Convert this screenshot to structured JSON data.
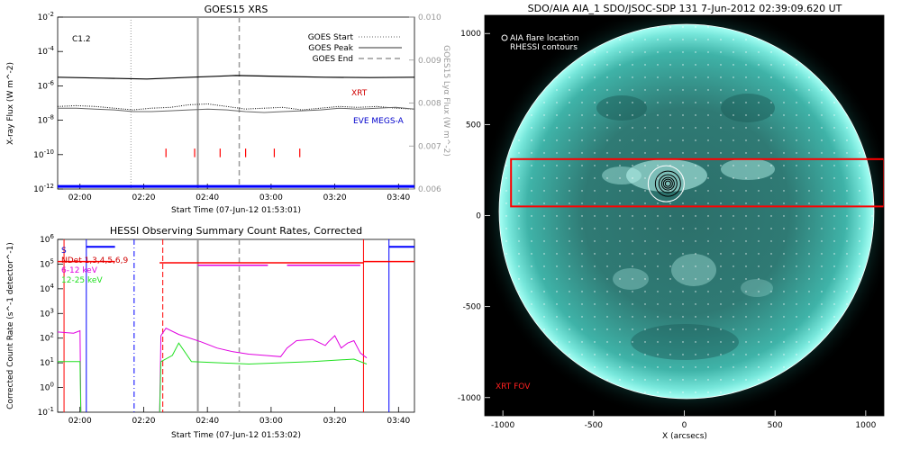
{
  "chart_data": [
    {
      "type": "line",
      "title": "GOES15 XRS",
      "xlabel": "Start Time (07-Jun-12 01:53:01)",
      "ylabel": "X-ray Flux (W m^-2)",
      "ylabel_right": "GOES15 Lyα Flux (W m^-2)",
      "x_range_minutes": [
        0,
        112
      ],
      "x_ticks": [
        "02:00",
        "02:20",
        "02:40",
        "03:00",
        "03:20",
        "03:40"
      ],
      "y_ticks": [
        "10^-2",
        "10^-4",
        "10^-6",
        "10^-8",
        "10^-10",
        "10^-12"
      ],
      "ylim_log10": [
        -12,
        -2
      ],
      "y2_ticks": [
        "0.010",
        "0.009",
        "0.008",
        "0.007",
        "0.006"
      ],
      "y2lim": [
        0.006,
        0.01
      ],
      "class_label": "C1.2",
      "legend": [
        {
          "label": "GOES Start",
          "style": "dotted"
        },
        {
          "label": "GOES Peak",
          "style": "solid"
        },
        {
          "label": "GOES End",
          "style": "dashed"
        }
      ],
      "series_labels": {
        "xrt": "XRT",
        "eve": "EVE MEGS-A"
      },
      "goes_start_min": 23,
      "goes_peak_min": 44,
      "goes_end_min": 57,
      "xrt_marks_min": [
        34,
        43,
        51,
        59,
        68,
        76
      ],
      "series": [
        {
          "name": "GOES long",
          "log10": [
            -5.5,
            -5.55,
            -5.6,
            -5.5,
            -5.4,
            -5.45,
            -5.5,
            -5.52,
            -5.5
          ]
        },
        {
          "name": "GOES short (dotted)",
          "log10": [
            -7.2,
            -7.15,
            -7.2,
            -7.3,
            -7.4,
            -7.3,
            -7.25,
            -7.1,
            -7.05,
            -7.2,
            -7.35,
            -7.3,
            -7.25,
            -7.4,
            -7.3,
            -7.2,
            -7.25,
            -7.2,
            -7.3,
            -7.35
          ]
        },
        {
          "name": "Lyman-alpha",
          "log10": [
            -7.3,
            -7.3,
            -7.35,
            -7.4,
            -7.5,
            -7.5,
            -7.45,
            -7.4,
            -7.35,
            -7.4,
            -7.5,
            -7.55,
            -7.5,
            -7.45,
            -7.4,
            -7.3,
            -7.35,
            -7.3,
            -7.25,
            -7.35
          ]
        },
        {
          "name": "baseline",
          "log10": [
            -11.85,
            -11.85
          ]
        }
      ]
    },
    {
      "type": "line",
      "title": "HESSI Observing Summary Count Rates, Corrected",
      "xlabel": "Start Time (07-Jun-12 01:53:02)",
      "ylabel": "Corrected Count Rate (s^-1 detector^-1)",
      "x_range_minutes": [
        0,
        112
      ],
      "x_ticks": [
        "02:00",
        "02:20",
        "02:40",
        "03:00",
        "03:20",
        "03:40"
      ],
      "y_ticks": [
        "10^6",
        "10^5",
        "10^4",
        "10^3",
        "10^2",
        "10^1",
        "10^0",
        "10^-1"
      ],
      "ylim_log10": [
        -1,
        6
      ],
      "legend": [
        {
          "label": "S",
          "color": "#0000d0"
        },
        {
          "label": "NDet 1,3,4,5,6,9",
          "color": "#d00000"
        },
        {
          "label": "6-12 keV",
          "color": "#e000e0"
        },
        {
          "label": "12-25 keV",
          "color": "#20e020"
        }
      ],
      "series": [
        {
          "name": "6-12 keV",
          "x": [
            0,
            5,
            7,
            7.3,
            32,
            32.4,
            34,
            38,
            45,
            50,
            55,
            60,
            65,
            70,
            72,
            75,
            80,
            84,
            85,
            87,
            89,
            91,
            93,
            95,
            97
          ],
          "log10": [
            2.25,
            2.2,
            2.3,
            -1.2,
            -1.2,
            2.1,
            2.4,
            2.15,
            1.85,
            1.6,
            1.45,
            1.35,
            1.3,
            1.25,
            1.6,
            1.9,
            1.95,
            1.7,
            1.85,
            2.1,
            1.6,
            1.8,
            1.9,
            1.4,
            1.2
          ]
        },
        {
          "name": "12-25 keV",
          "x": [
            0,
            7,
            7.3,
            32,
            32.4,
            36,
            38,
            42,
            60,
            80,
            93,
            97
          ],
          "log10": [
            1.05,
            1.05,
            -1.2,
            -1.2,
            1.05,
            1.3,
            1.8,
            1.05,
            0.95,
            1.05,
            1.15,
            0.95
          ]
        }
      ],
      "attenuator_levels_log10": {
        "top": 5.7,
        "high": 5.1
      },
      "ndet_segments": [
        {
          "x": [
            0,
            18
          ],
          "level": "high"
        },
        {
          "x": [
            32,
            96
          ],
          "level": "mid"
        },
        {
          "x": [
            96,
            112
          ],
          "level": "high"
        }
      ],
      "magenta_line_segments": [
        [
          44,
          66
        ],
        [
          72,
          95
        ]
      ],
      "vlines": {
        "red_solid_min": [
          2,
          96
        ],
        "blue_solid_min": [
          9,
          104
        ],
        "blue_dashdot_min": [
          24
        ],
        "red_dashed_min": [
          33
        ],
        "gray_solid_min": [
          44
        ],
        "gray_dashed_min": [
          57
        ]
      }
    },
    {
      "type": "heatmap",
      "title": "SDO/AIA AIA_1 SDO/JSOC-SDP 131   7-Jun-2012 02:39:09.620 UT",
      "xlabel": "X (arcsecs)",
      "ylabel": "",
      "x_ticks": [
        -1000,
        -500,
        0,
        500,
        1000
      ],
      "y_ticks": [
        1000,
        500,
        0,
        -500,
        -1000
      ],
      "xlim": [
        -1100,
        1100
      ],
      "ylim": [
        -1100,
        1100
      ],
      "legend": [
        "AIA flare location",
        "RHESSI contours"
      ],
      "fov_label": "XRT FOV",
      "fov_box": {
        "x": [
          -955,
          1100
        ],
        "y": [
          50,
          310
        ]
      },
      "flare_location": {
        "x": -100,
        "y": 175
      },
      "solar_radius_arcsec": 945
    }
  ]
}
